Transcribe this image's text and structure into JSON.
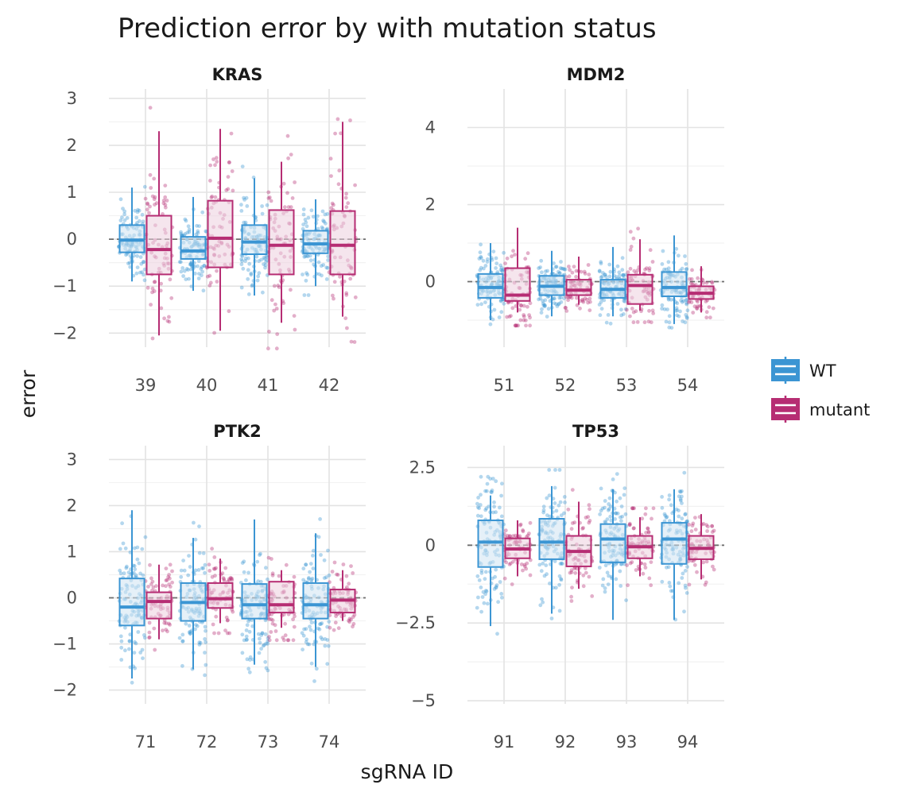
{
  "chart_data": {
    "type": "box",
    "title": "Prediction error by with mutation status",
    "xlabel": "sgRNA ID",
    "ylabel": "error",
    "grid": true,
    "legend_position": "right",
    "reference_line": 0,
    "legend": [
      {
        "name": "WT",
        "color": "#3b95d3"
      },
      {
        "name": "mutant",
        "color": "#b62d73"
      }
    ],
    "panels": [
      {
        "name": "KRAS",
        "ylim": [
          -2.3,
          3.2
        ],
        "yticks": [
          -2,
          -1,
          0,
          1,
          2,
          3
        ],
        "ytick_labels": [
          "−2",
          "−1",
          "0",
          "1",
          "2",
          "3"
        ],
        "categories": [
          "39",
          "40",
          "41",
          "42"
        ],
        "series": [
          {
            "name": "WT",
            "boxes": [
              {
                "min": -0.9,
                "q1": -0.28,
                "median": -0.02,
                "q3": 0.3,
                "max": 1.1
              },
              {
                "min": -1.1,
                "q1": -0.42,
                "median": -0.25,
                "q3": 0.05,
                "max": 0.9
              },
              {
                "min": -1.2,
                "q1": -0.32,
                "median": -0.06,
                "q3": 0.3,
                "max": 1.3
              },
              {
                "min": -1.0,
                "q1": -0.3,
                "median": -0.1,
                "q3": 0.18,
                "max": 0.85
              }
            ]
          },
          {
            "name": "mutant",
            "boxes": [
              {
                "min": -2.05,
                "q1": -0.75,
                "median": -0.22,
                "q3": 0.5,
                "max": 2.3
              },
              {
                "min": -1.95,
                "q1": -0.6,
                "median": 0.02,
                "q3": 0.82,
                "max": 2.35
              },
              {
                "min": -1.78,
                "q1": -0.75,
                "median": -0.13,
                "q3": 0.62,
                "max": 1.65
              },
              {
                "min": -1.65,
                "q1": -0.75,
                "median": -0.13,
                "q3": 0.6,
                "max": 2.5
              }
            ]
          }
        ]
      },
      {
        "name": "MDM2",
        "ylim": [
          -1.7,
          5.0
        ],
        "yticks": [
          0,
          2,
          4
        ],
        "ytick_labels": [
          "0",
          "2",
          "4"
        ],
        "categories": [
          "51",
          "52",
          "53",
          "54"
        ],
        "series": [
          {
            "name": "WT",
            "boxes": [
              {
                "min": -1.0,
                "q1": -0.42,
                "median": -0.15,
                "q3": 0.2,
                "max": 1.0
              },
              {
                "min": -0.9,
                "q1": -0.35,
                "median": -0.12,
                "q3": 0.15,
                "max": 0.8
              },
              {
                "min": -0.9,
                "q1": -0.42,
                "median": -0.2,
                "q3": 0.05,
                "max": 0.9
              },
              {
                "min": -1.1,
                "q1": -0.38,
                "median": -0.15,
                "q3": 0.25,
                "max": 1.2
              }
            ]
          },
          {
            "name": "mutant",
            "boxes": [
              {
                "min": -0.8,
                "q1": -0.5,
                "median": -0.35,
                "q3": 0.35,
                "max": 1.4
              },
              {
                "min": -0.6,
                "q1": -0.35,
                "median": -0.22,
                "q3": 0.05,
                "max": 0.65
              },
              {
                "min": -0.75,
                "q1": -0.58,
                "median": -0.1,
                "q3": 0.18,
                "max": 1.1
              },
              {
                "min": -0.8,
                "q1": -0.45,
                "median": -0.3,
                "q3": -0.12,
                "max": 0.4
              }
            ]
          }
        ]
      },
      {
        "name": "PTK2",
        "ylim": [
          -2.3,
          3.3
        ],
        "yticks": [
          -2,
          -1,
          0,
          1,
          2,
          3
        ],
        "ytick_labels": [
          "−2",
          "−1",
          "0",
          "1",
          "2",
          "3"
        ],
        "categories": [
          "71",
          "72",
          "73",
          "74"
        ],
        "series": [
          {
            "name": "WT",
            "boxes": [
              {
                "min": -1.75,
                "q1": -0.6,
                "median": -0.2,
                "q3": 0.42,
                "max": 1.9
              },
              {
                "min": -1.55,
                "q1": -0.5,
                "median": -0.1,
                "q3": 0.32,
                "max": 1.3
              },
              {
                "min": -1.45,
                "q1": -0.45,
                "median": -0.15,
                "q3": 0.3,
                "max": 1.7
              },
              {
                "min": -1.5,
                "q1": -0.45,
                "median": -0.15,
                "q3": 0.32,
                "max": 1.4
              }
            ]
          },
          {
            "name": "mutant",
            "boxes": [
              {
                "min": -0.9,
                "q1": -0.45,
                "median": -0.08,
                "q3": 0.12,
                "max": 0.72
              },
              {
                "min": -0.55,
                "q1": -0.22,
                "median": -0.02,
                "q3": 0.32,
                "max": 0.85
              },
              {
                "min": -0.65,
                "q1": -0.32,
                "median": -0.15,
                "q3": 0.35,
                "max": 0.6
              },
              {
                "min": -0.5,
                "q1": -0.32,
                "median": -0.05,
                "q3": 0.18,
                "max": 0.6
              }
            ]
          }
        ]
      },
      {
        "name": "TP53",
        "ylim": [
          -5.1,
          3.2
        ],
        "yticks": [
          -5,
          -2.5,
          0,
          2.5
        ],
        "ytick_labels": [
          "−5",
          "−2.5",
          "0",
          "2.5"
        ],
        "categories": [
          "91",
          "92",
          "93",
          "94"
        ],
        "series": [
          {
            "name": "WT",
            "boxes": [
              {
                "min": -2.6,
                "q1": -0.7,
                "median": 0.1,
                "q3": 0.8,
                "max": 1.6
              },
              {
                "min": -2.2,
                "q1": -0.45,
                "median": 0.1,
                "q3": 0.85,
                "max": 1.9
              },
              {
                "min": -2.4,
                "q1": -0.55,
                "median": 0.2,
                "q3": 0.68,
                "max": 1.8
              },
              {
                "min": -2.4,
                "q1": -0.6,
                "median": 0.2,
                "q3": 0.72,
                "max": 1.8
              }
            ]
          },
          {
            "name": "mutant",
            "boxes": [
              {
                "min": -1.0,
                "q1": -0.42,
                "median": -0.12,
                "q3": 0.22,
                "max": 0.8
              },
              {
                "min": -1.4,
                "q1": -0.68,
                "median": -0.2,
                "q3": 0.3,
                "max": 1.4
              },
              {
                "min": -1.0,
                "q1": -0.42,
                "median": -0.05,
                "q3": 0.3,
                "max": 0.9
              },
              {
                "min": -1.1,
                "q1": -0.45,
                "median": -0.1,
                "q3": 0.3,
                "max": 1.0
              }
            ]
          }
        ]
      }
    ]
  }
}
